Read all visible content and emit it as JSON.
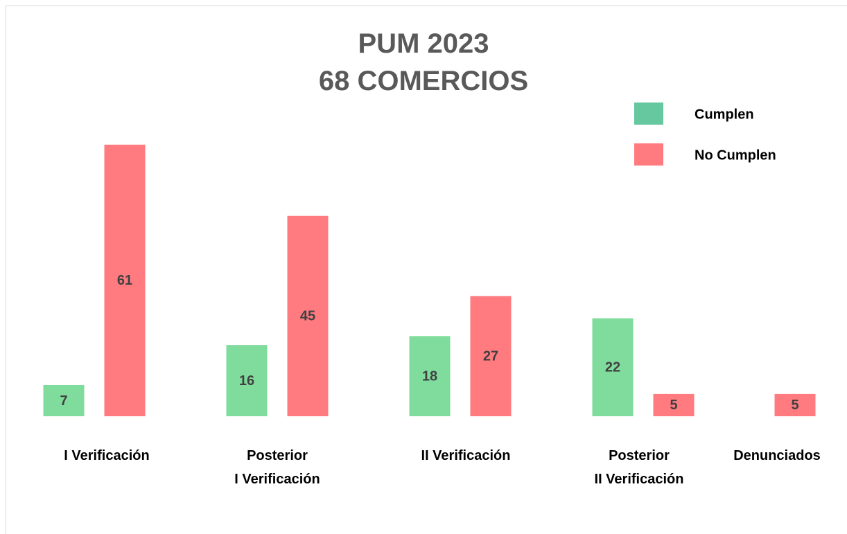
{
  "chart_data": {
    "type": "bar",
    "title": "PUM 2023\n68 COMERCIOS",
    "categories": [
      "I Verificación",
      "Posterior\nI Verificación",
      "II Verificación",
      "Posterior\nII Verificación",
      "Denunciados"
    ],
    "series": [
      {
        "name": "Cumplen",
        "color": "#7fdc9c",
        "values": [
          7,
          16,
          18,
          22,
          null
        ]
      },
      {
        "name": "No Cumplen",
        "color": "#ff7b80",
        "values": [
          61,
          45,
          27,
          5,
          5
        ]
      }
    ],
    "ylim": [
      0,
      70
    ],
    "legend": "top-right"
  }
}
